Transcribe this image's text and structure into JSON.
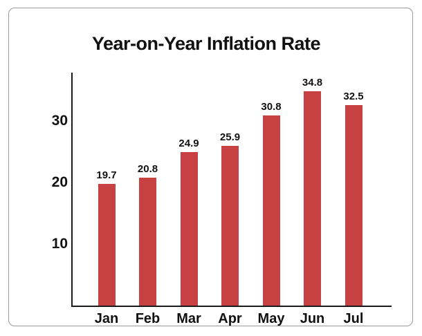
{
  "chart_data": {
    "type": "bar",
    "title": "Year-on-Year Inflation Rate",
    "categories": [
      "Jan",
      "Feb",
      "Mar",
      "Apr",
      "May",
      "Jun",
      "Jul"
    ],
    "values": [
      19.7,
      20.8,
      24.9,
      25.9,
      30.8,
      34.8,
      32.5
    ],
    "value_labels": [
      "19.7",
      "20.8",
      "24.9",
      "25.9",
      "30.8",
      "34.8",
      "32.5"
    ],
    "yticks": [
      10,
      20,
      30
    ],
    "ytick_labels": [
      "10",
      "20",
      "30"
    ],
    "ylim": [
      0,
      37.8
    ],
    "xlabel": "",
    "ylabel": "",
    "grid": false,
    "legend": "none",
    "bar_color": "#C84142",
    "axis_color": "#1a1a1a",
    "text_color": "#111111",
    "frame_border_color": "#999999",
    "background_color": "#ffffff"
  }
}
